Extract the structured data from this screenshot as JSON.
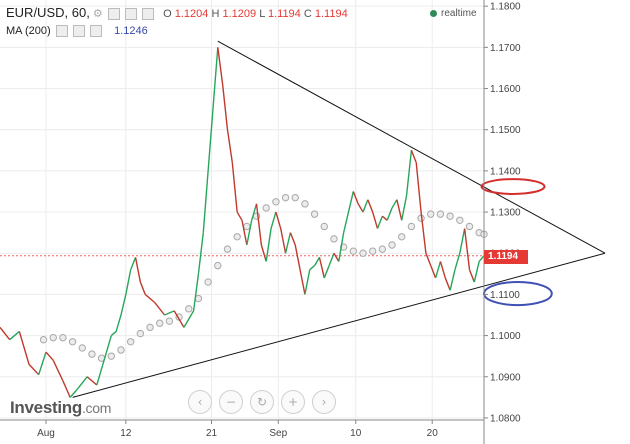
{
  "header": {
    "symbol": "EUR/USD, 60,",
    "ohlc": {
      "o_label": "O",
      "o": "1.1204",
      "h_label": "H",
      "h": "1.1209",
      "l_label": "L",
      "l": "1.1194",
      "c_label": "C",
      "c": "1.1194"
    },
    "ma_label": "MA (200)",
    "ma_value": "1.1246",
    "realtime_label": "realtime"
  },
  "brand": {
    "name": "Investing",
    "suffix": ".com"
  },
  "nav_buttons": [
    {
      "name": "scroll-left-button",
      "glyph": "‹"
    },
    {
      "name": "zoom-out-button",
      "glyph": "−"
    },
    {
      "name": "reset-button",
      "glyph": "↻"
    },
    {
      "name": "zoom-in-button",
      "glyph": "+"
    },
    {
      "name": "scroll-right-button",
      "glyph": "›"
    }
  ],
  "colors": {
    "up": "#26a65b",
    "down": "#c0392b",
    "ma": "#c8c8c8",
    "price_line": "#e53935",
    "ellipse_top": "#d32f2f",
    "ellipse_bottom": "#3f51b5"
  },
  "chart_data": {
    "type": "line",
    "instrument": "EUR/USD",
    "timeframe": "60",
    "ylim": [
      1.0795,
      1.1815
    ],
    "xlim": [
      0,
      100
    ],
    "y_ticks": [
      "1.1800",
      "1.1700",
      "1.1600",
      "1.1500",
      "1.1400",
      "1.1300",
      "1.1200",
      "1.1100",
      "1.1000",
      "1.0900",
      "1.0800"
    ],
    "x_ticks": [
      {
        "label": "Aug",
        "x": 9.5
      },
      {
        "label": "12",
        "x": 26.0
      },
      {
        "label": "21",
        "x": 43.7
      },
      {
        "label": "Sep",
        "x": 57.5
      },
      {
        "label": "10",
        "x": 73.5
      },
      {
        "label": "20",
        "x": 89.3
      }
    ],
    "last_price": "1.1194",
    "price_series": {
      "name": "",
      "points": [
        [
          0,
          1.102
        ],
        [
          2,
          1.099
        ],
        [
          4,
          1.101
        ],
        [
          6,
          1.093
        ],
        [
          8,
          1.0905
        ],
        [
          9.5,
          1.096
        ],
        [
          11,
          1.094
        ],
        [
          13,
          1.089
        ],
        [
          14.5,
          1.085
        ],
        [
          16,
          1.087
        ],
        [
          18,
          1.09
        ],
        [
          20,
          1.088
        ],
        [
          21,
          1.092
        ],
        [
          22,
          1.096
        ],
        [
          23,
          1.1
        ],
        [
          24,
          1.101
        ],
        [
          25,
          1.105
        ],
        [
          26,
          1.11
        ],
        [
          27,
          1.116
        ],
        [
          28,
          1.119
        ],
        [
          29,
          1.113
        ],
        [
          30,
          1.11
        ],
        [
          32,
          1.108
        ],
        [
          34,
          1.105
        ],
        [
          36,
          1.106
        ],
        [
          38,
          1.102
        ],
        [
          40,
          1.106
        ],
        [
          41,
          1.115
        ],
        [
          42,
          1.125
        ],
        [
          43,
          1.14
        ],
        [
          44,
          1.155
        ],
        [
          45,
          1.17
        ],
        [
          46,
          1.161
        ],
        [
          47,
          1.15
        ],
        [
          48,
          1.142
        ],
        [
          49,
          1.13
        ],
        [
          50,
          1.128
        ],
        [
          51,
          1.122
        ],
        [
          52,
          1.128
        ],
        [
          53,
          1.132
        ],
        [
          54,
          1.122
        ],
        [
          55,
          1.118
        ],
        [
          56,
          1.126
        ],
        [
          57,
          1.13
        ],
        [
          58,
          1.126
        ],
        [
          59,
          1.12
        ],
        [
          60,
          1.125
        ],
        [
          61,
          1.122
        ],
        [
          62,
          1.116
        ],
        [
          63,
          1.11
        ],
        [
          64,
          1.116
        ],
        [
          65,
          1.117
        ],
        [
          66,
          1.119
        ],
        [
          67,
          1.114
        ],
        [
          68,
          1.117
        ],
        [
          69,
          1.12
        ],
        [
          70,
          1.118
        ],
        [
          71,
          1.125
        ],
        [
          72,
          1.13
        ],
        [
          73,
          1.135
        ],
        [
          74,
          1.132
        ],
        [
          75,
          1.13
        ],
        [
          76,
          1.133
        ],
        [
          77,
          1.13
        ],
        [
          78,
          1.126
        ],
        [
          79,
          1.129
        ],
        [
          80,
          1.128
        ],
        [
          81,
          1.131
        ],
        [
          82,
          1.133
        ],
        [
          83,
          1.128
        ],
        [
          84,
          1.134
        ],
        [
          85,
          1.145
        ],
        [
          86,
          1.142
        ],
        [
          87,
          1.13
        ],
        [
          88,
          1.12
        ],
        [
          89,
          1.117
        ],
        [
          90,
          1.114
        ],
        [
          91,
          1.118
        ],
        [
          92,
          1.114
        ],
        [
          93,
          1.111
        ],
        [
          94,
          1.116
        ],
        [
          95,
          1.12
        ],
        [
          96,
          1.126
        ],
        [
          97,
          1.116
        ],
        [
          98,
          1.113
        ],
        [
          99,
          1.118
        ],
        [
          100,
          1.1194
        ]
      ]
    },
    "ma_series": {
      "name": "MA (200)",
      "points": [
        [
          9,
          1.099
        ],
        [
          11,
          1.0995
        ],
        [
          13,
          1.0995
        ],
        [
          15,
          1.0985
        ],
        [
          17,
          1.097
        ],
        [
          19,
          1.0955
        ],
        [
          21,
          1.0945
        ],
        [
          23,
          1.095
        ],
        [
          25,
          1.0965
        ],
        [
          27,
          1.0985
        ],
        [
          29,
          1.1005
        ],
        [
          31,
          1.102
        ],
        [
          33,
          1.103
        ],
        [
          35,
          1.1035
        ],
        [
          37,
          1.1045
        ],
        [
          39,
          1.1065
        ],
        [
          41,
          1.109
        ],
        [
          43,
          1.113
        ],
        [
          45,
          1.117
        ],
        [
          47,
          1.121
        ],
        [
          49,
          1.124
        ],
        [
          51,
          1.1265
        ],
        [
          53,
          1.129
        ],
        [
          55,
          1.131
        ],
        [
          57,
          1.1325
        ],
        [
          59,
          1.1335
        ],
        [
          61,
          1.1335
        ],
        [
          63,
          1.132
        ],
        [
          65,
          1.1295
        ],
        [
          67,
          1.1265
        ],
        [
          69,
          1.1235
        ],
        [
          71,
          1.1215
        ],
        [
          73,
          1.1205
        ],
        [
          75,
          1.12
        ],
        [
          77,
          1.1205
        ],
        [
          79,
          1.121
        ],
        [
          81,
          1.122
        ],
        [
          83,
          1.124
        ],
        [
          85,
          1.1265
        ],
        [
          87,
          1.1285
        ],
        [
          89,
          1.1295
        ],
        [
          91,
          1.1295
        ],
        [
          93,
          1.129
        ],
        [
          95,
          1.128
        ],
        [
          97,
          1.1265
        ],
        [
          99,
          1.125
        ],
        [
          100,
          1.1246
        ]
      ]
    },
    "trendlines": [
      {
        "name": "upper-trendline",
        "from": [
          45,
          1.1715
        ],
        "to": [
          125,
          1.12
        ]
      },
      {
        "name": "lower-trendline",
        "from": [
          15,
          1.085
        ],
        "to": [
          125,
          1.12
        ]
      }
    ],
    "ellipses": [
      {
        "name": "resistance-ellipse",
        "cx": 106,
        "cy": 1.1362,
        "rx": 6.5,
        "ry": 0.0018,
        "color": "#d32f2f"
      },
      {
        "name": "support-ellipse",
        "cx": 107,
        "cy": 1.1102,
        "rx": 7,
        "ry": 0.0028,
        "color": "#3f51b5"
      }
    ],
    "grid": true
  }
}
